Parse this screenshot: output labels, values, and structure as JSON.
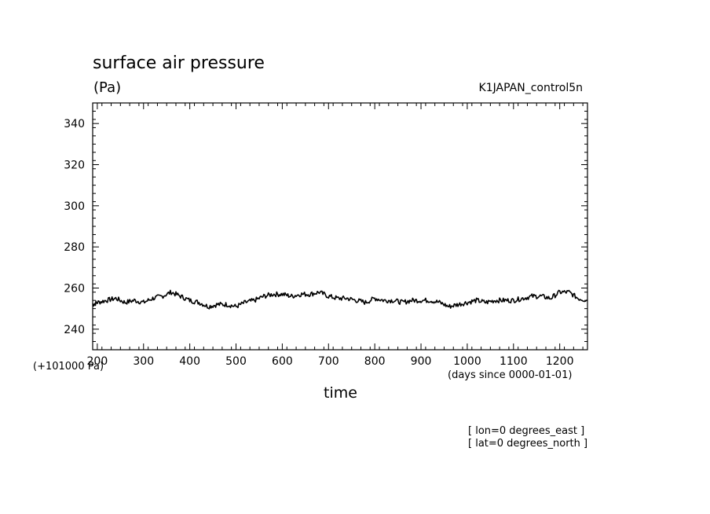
{
  "header": {
    "title": "surface air pressure",
    "unit": "(Pa)",
    "run_name": "K1JAPAN_control5n"
  },
  "axes": {
    "y_offset_label": "(+101000 Pa)",
    "x_unit_label": "(days since 0000-01-01)",
    "x_title": "time"
  },
  "notes": [
    "[ lon=0 degrees_east ]",
    "[ lat=0 degrees_north ]"
  ],
  "chart_data": {
    "type": "line",
    "xlabel": "time",
    "ylabel": "(Pa)",
    "xlim": [
      190,
      1260
    ],
    "ylim": [
      230,
      350
    ],
    "xticks": [
      200,
      300,
      400,
      500,
      600,
      700,
      800,
      900,
      1000,
      1100,
      1200
    ],
    "xtick_labels": [
      "200",
      "300",
      "400",
      "500",
      "600",
      "700",
      "800",
      "900",
      "1000",
      "1100",
      "1200"
    ],
    "yticks": [
      240,
      260,
      280,
      300,
      320,
      340
    ],
    "ytick_labels": [
      "240",
      "260",
      "280",
      "300",
      "320",
      "340"
    ],
    "grid": false,
    "series": [
      {
        "x": [
          190,
          200,
          220,
          240,
          260,
          280,
          300,
          320,
          340,
          360,
          380,
          400,
          420,
          440,
          460,
          480,
          500,
          520,
          540,
          560,
          580,
          600,
          620,
          640,
          660,
          680,
          700,
          720,
          740,
          760,
          780,
          800,
          820,
          840,
          860,
          880,
          900,
          920,
          940,
          960,
          980,
          1000,
          1020,
          1040,
          1060,
          1080,
          1100,
          1120,
          1140,
          1160,
          1180,
          1200,
          1220,
          1240,
          1260
        ],
        "y": [
          252,
          253,
          254,
          255,
          253,
          254,
          253,
          255,
          256,
          258,
          256,
          254,
          253,
          251,
          252,
          252,
          251,
          253,
          254,
          256,
          257,
          257,
          256,
          257,
          257,
          258,
          256,
          255,
          255,
          254,
          253,
          255,
          254,
          254,
          253,
          254,
          254,
          254,
          253,
          251,
          252,
          253,
          254,
          253,
          254,
          254,
          254,
          255,
          256,
          256,
          255,
          258,
          258,
          255,
          254
        ]
      }
    ]
  }
}
